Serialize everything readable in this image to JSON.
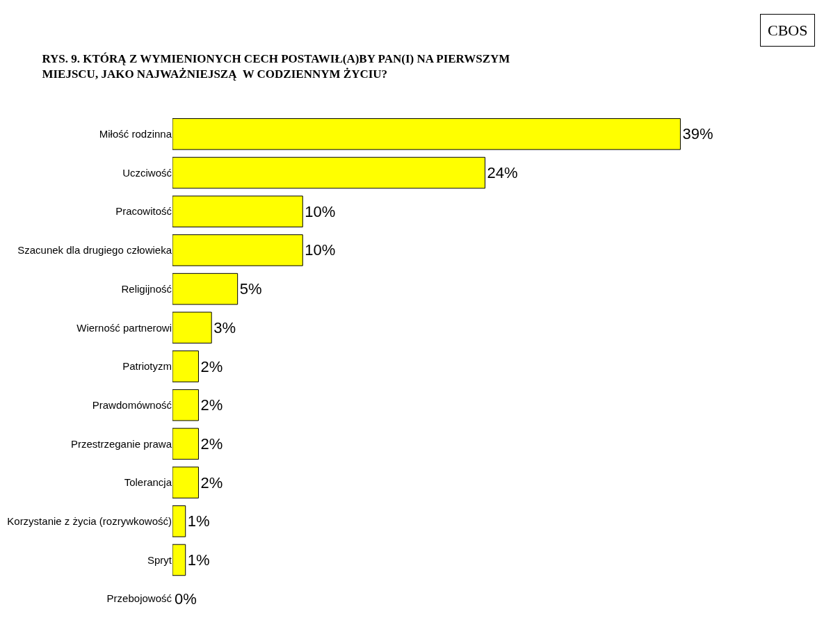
{
  "chart_data": {
    "type": "bar",
    "orientation": "horizontal",
    "title": "RYS. 9. KTÓRĄ Z WYMIENIONYCH CECH POSTAWIŁ(A)BY PAN(I) NA PIERWSZYM\nMIEJSCU, JAKO NAJWAŻNIEJSZĄ  W CODZIENNYM ŻYCIU?",
    "annotations": [
      "CBOS"
    ],
    "categories": [
      "Miłość rodzinna",
      "Uczciwość",
      "Pracowitość",
      "Szacunek dla drugiego człowieka",
      "Religijność",
      "Wierność partnerowi",
      "Patriotyzm",
      "Prawdomówność",
      "Przestrzeganie prawa",
      "Tolerancja",
      "Korzystanie z życia (rozrywkowość)",
      "Spryt",
      "Przebojowość"
    ],
    "values": [
      39,
      24,
      10,
      10,
      5,
      3,
      2,
      2,
      2,
      2,
      1,
      1,
      0
    ],
    "value_labels": [
      "39%",
      "24%",
      "10%",
      "10%",
      "5%",
      "3%",
      "2%",
      "2%",
      "2%",
      "2%",
      "1%",
      "1%",
      "0%"
    ],
    "color": "#ffff00"
  }
}
